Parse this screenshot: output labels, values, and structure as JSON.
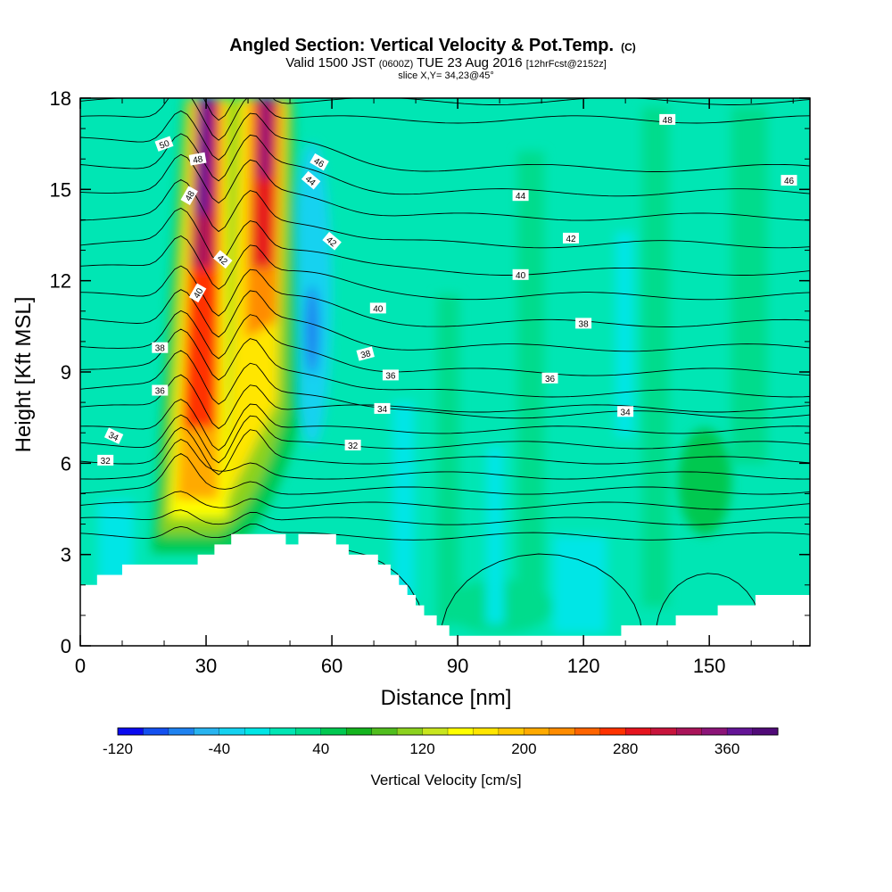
{
  "chart_data": {
    "type": "heatmap",
    "title": "Angled Section: Vertical Velocity & Pot.Temp.",
    "title_mark": "(C)",
    "subtitle": {
      "pre": "Valid 1500 JST ",
      "utc": "(0600Z)",
      "mid": " TUE 23 Aug 2016 ",
      "fcst": "[12hrFcst@2152z]"
    },
    "slice_text": "slice X,Y= 34,23@45°",
    "xlabel": "Distance [nm]",
    "ylabel": "Height [Kft MSL]",
    "xlim": [
      0,
      174
    ],
    "ylim": [
      0,
      18
    ],
    "xticks": [
      "0",
      "30",
      "60",
      "90",
      "120",
      "150"
    ],
    "yticks": [
      "0",
      "3",
      "6",
      "9",
      "12",
      "15",
      "18"
    ],
    "colorbar": {
      "label": "Vertical Velocity [cm/s]",
      "range": [
        -120,
        400
      ],
      "step": 20,
      "ticks": [
        "-120",
        "-40",
        "40",
        "120",
        "200",
        "280",
        "360"
      ],
      "colors": [
        "#0a0af0",
        "#1450f0",
        "#1e82f0",
        "#28b4f0",
        "#14d2f0",
        "#00e6e6",
        "#00e6b4",
        "#00dc8c",
        "#00c850",
        "#14b41e",
        "#50be1e",
        "#8cd21e",
        "#c8e61e",
        "#ffff00",
        "#ffe600",
        "#ffc800",
        "#ffaa00",
        "#ff8c00",
        "#ff6400",
        "#ff3200",
        "#e6141e",
        "#c8143c",
        "#aa145a",
        "#8c1478",
        "#641496",
        "#500a78"
      ]
    },
    "contour_labels": [
      "50",
      "48",
      "48",
      "48",
      "46",
      "46",
      "44",
      "44",
      "42",
      "42",
      "42",
      "40",
      "40",
      "40",
      "38",
      "38",
      "38",
      "36",
      "36",
      "36",
      "34",
      "34",
      "34",
      "32",
      "32"
    ],
    "terrain": [
      [
        0,
        2
      ],
      [
        4,
        2
      ],
      [
        4,
        2.33
      ],
      [
        10,
        2.33
      ],
      [
        10,
        2.67
      ],
      [
        28,
        2.67
      ],
      [
        28,
        3
      ],
      [
        32,
        3
      ],
      [
        32,
        3.33
      ],
      [
        36,
        3.33
      ],
      [
        36,
        3.67
      ],
      [
        49,
        3.67
      ],
      [
        49,
        3.33
      ],
      [
        52,
        3.33
      ],
      [
        52,
        3.67
      ],
      [
        61,
        3.67
      ],
      [
        61,
        3.33
      ],
      [
        64,
        3.33
      ],
      [
        64,
        3
      ],
      [
        71,
        3
      ],
      [
        71,
        2.67
      ],
      [
        74,
        2.67
      ],
      [
        74,
        2.33
      ],
      [
        76,
        2.33
      ],
      [
        76,
        2
      ],
      [
        78,
        2
      ],
      [
        78,
        1.67
      ],
      [
        80,
        1.67
      ],
      [
        80,
        1.33
      ],
      [
        82,
        1.33
      ],
      [
        82,
        1
      ],
      [
        85,
        1
      ],
      [
        85,
        0.67
      ],
      [
        88,
        0.67
      ],
      [
        88,
        0.33
      ],
      [
        129,
        0.33
      ],
      [
        129,
        0.67
      ],
      [
        142,
        0.67
      ],
      [
        142,
        1
      ],
      [
        152,
        1
      ],
      [
        152,
        1.33
      ],
      [
        161,
        1.33
      ],
      [
        161,
        1.67
      ],
      [
        174,
        1.67
      ],
      [
        174,
        0
      ],
      [
        0,
        0
      ]
    ]
  }
}
